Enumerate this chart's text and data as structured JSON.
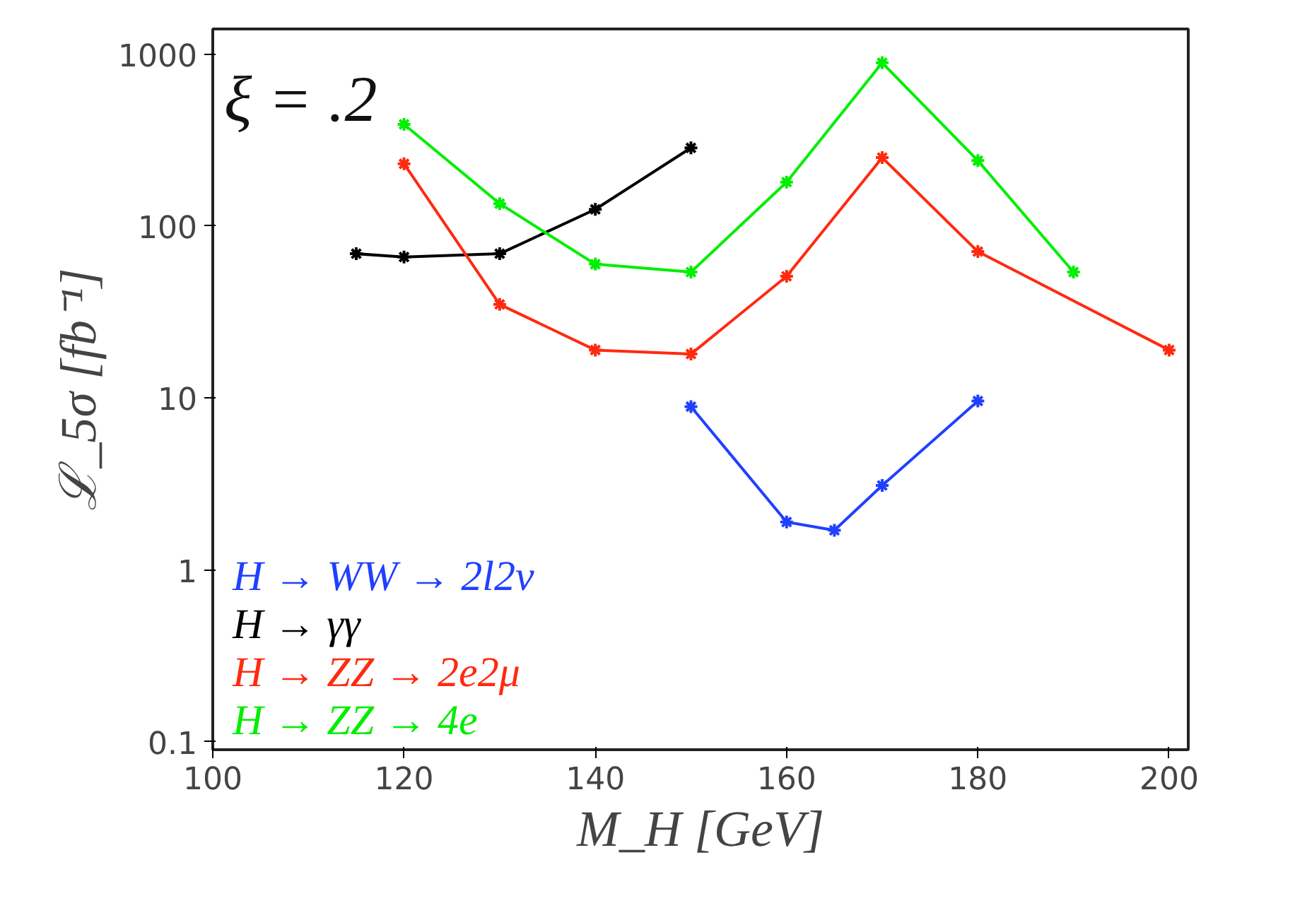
{
  "chart_data": {
    "type": "line",
    "xlabel": "M_H [GeV]",
    "ylabel": "ℒ_5σ [fb⁻¹]",
    "annotations": [
      "ξ = .2"
    ],
    "log": "y",
    "grid": false,
    "legend": "bottom left",
    "marker": "cross",
    "line_style": "solid",
    "xlim": [
      100,
      202
    ],
    "xticks": [
      100,
      120,
      140,
      160,
      180,
      200
    ],
    "ylim": [
      0.09,
      1400
    ],
    "yticks": [
      0.1,
      1,
      10,
      100,
      1000
    ],
    "series": [
      {
        "name": "H → WW → 2l2ν",
        "color": "#2040ff",
        "x": [
          150,
          160,
          165,
          170,
          180
        ],
        "values": [
          8.9,
          1.9,
          1.7,
          3.1,
          9.6
        ]
      },
      {
        "name": "H → γγ",
        "color": "#000000",
        "x": [
          115,
          120,
          130,
          140,
          150
        ],
        "values": [
          69,
          66,
          69,
          125,
          285
        ]
      },
      {
        "name": "H → ZZ → 2e2μ",
        "color": "#ff2a10",
        "x": [
          120,
          130,
          140,
          150,
          160,
          170,
          180,
          200
        ],
        "values": [
          230,
          35,
          19,
          18,
          51,
          250,
          71,
          19
        ]
      },
      {
        "name": "H → ZZ → 4e",
        "color": "#00ee00",
        "x": [
          120,
          130,
          140,
          150,
          160,
          170,
          180,
          190
        ],
        "values": [
          390,
          135,
          60,
          54,
          180,
          890,
          240,
          54
        ]
      }
    ]
  }
}
